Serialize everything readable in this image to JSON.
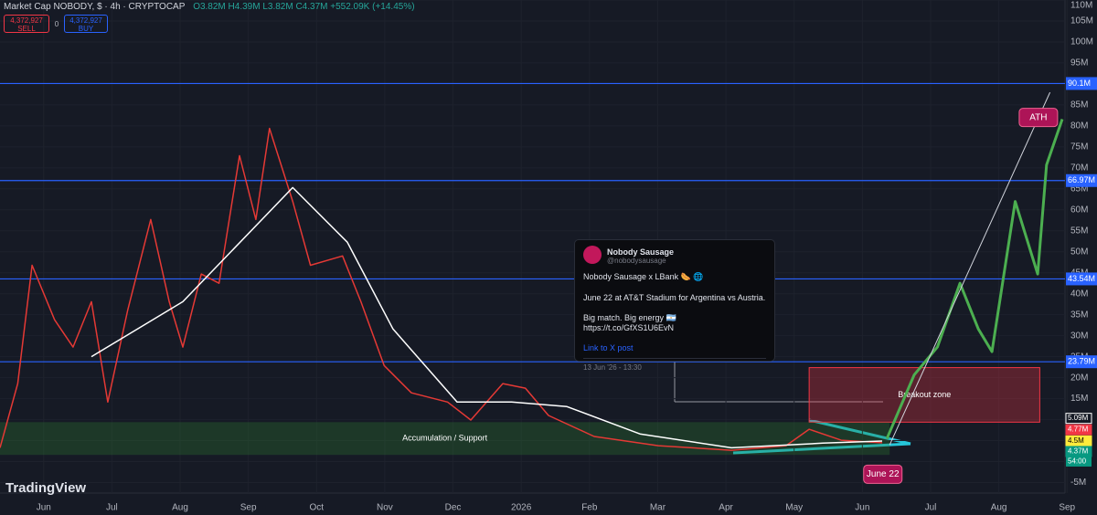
{
  "header": {
    "symbol": "Market Cap NOBODY, $ · 4h · CRYPTOCAP",
    "ohlc": "O3.82M H4.39M L3.82M C4.37M +552.09K (+14.45%)",
    "sell_price": "4,372,927",
    "sell_label": "SELL",
    "spread": "0",
    "buy_price": "4,372,927",
    "buy_label": "BUY",
    "brand": "TradingView"
  },
  "tweet": {
    "author": "Nobody Sausage",
    "handle": "@nobodysausage",
    "lines": [
      "Nobody Sausage x LBank 🌭 🌐",
      "June 22 at AT&T Stadium for Argentina vs Austria.",
      "Big match. Big energy 🇦🇷 https://t.co/GfXS1U6EvN"
    ],
    "link": "Link to X post",
    "date": "13 Jun '26 - 13:30"
  },
  "chart_data": {
    "type": "line",
    "series": [
      {
        "name": "Market Cap",
        "color": "#e53935",
        "x": [
          -0.64,
          -0.38,
          -0.17,
          0.16,
          0.43,
          0.7,
          0.94,
          1.23,
          1.57,
          1.84,
          2.04,
          2.31,
          2.57,
          2.87,
          3.11,
          3.31,
          3.65,
          3.91,
          4.38,
          4.65,
          4.99,
          5.39,
          5.92,
          6.26,
          6.73,
          7.06,
          7.4,
          8.07,
          9.01,
          10.08,
          10.88,
          11.22,
          11.69,
          12.29
        ],
        "values": [
          3.3,
          18.6,
          46.8,
          33.8,
          27.3,
          38.1,
          14.2,
          36,
          57.7,
          38.1,
          27.3,
          44.7,
          42.5,
          72.9,
          57.7,
          79.4,
          62,
          46.8,
          49,
          38.1,
          22.9,
          16.4,
          14.2,
          9.9,
          18.6,
          17.5,
          11,
          6,
          3.8,
          2.7,
          3.8,
          7.7,
          5.1,
          4.5
        ]
      },
      {
        "name": "Moving Average",
        "color": "#ffffff",
        "x": [
          0.7,
          2.04,
          3.65,
          4.45,
          5.12,
          6.06,
          6.86,
          7.67,
          8.74,
          10.08,
          11.42,
          12.29
        ],
        "values": [
          25,
          38.1,
          65.3,
          52.3,
          31.6,
          14.2,
          14.2,
          13.1,
          6.6,
          3.3,
          4.4,
          4.9
        ]
      },
      {
        "name": "Projection",
        "color": "#4caf50",
        "x": [
          12.36,
          12.76,
          13.1,
          13.43,
          13.7,
          13.9,
          14.24,
          14.57,
          14.7,
          14.93
        ],
        "values": [
          5.5,
          20.7,
          27.3,
          42.5,
          31.6,
          26.2,
          62,
          44.7,
          70.7,
          81.6
        ]
      }
    ],
    "xlim": [
      -0.64,
      14.97
    ],
    "ylim": [
      -7.5,
      110
    ],
    "xticks": [
      {
        "value": 0,
        "label": "Jun"
      },
      {
        "value": 1,
        "label": "Jul"
      },
      {
        "value": 2,
        "label": "Aug"
      },
      {
        "value": 3,
        "label": "Sep"
      },
      {
        "value": 4,
        "label": "Oct"
      },
      {
        "value": 5,
        "label": "Nov"
      },
      {
        "value": 6,
        "label": "Dec"
      },
      {
        "value": 7,
        "label": "2026"
      },
      {
        "value": 8,
        "label": "Feb"
      },
      {
        "value": 9,
        "label": "Mar"
      },
      {
        "value": 10,
        "label": "Apr"
      },
      {
        "value": 11,
        "label": "May"
      },
      {
        "value": 12,
        "label": "Jun"
      },
      {
        "value": 13,
        "label": "Jul"
      },
      {
        "value": 14,
        "label": "Aug"
      },
      {
        "value": 15,
        "label": "Sep"
      }
    ],
    "yticks": [
      {
        "value": 110,
        "label": "110M"
      },
      {
        "value": 105,
        "label": "105M"
      },
      {
        "value": 100,
        "label": "100M"
      },
      {
        "value": 95,
        "label": "95M"
      },
      {
        "value": 90,
        "label": "90M"
      },
      {
        "value": 85,
        "label": "85M"
      },
      {
        "value": 80,
        "label": "80M"
      },
      {
        "value": 75,
        "label": "75M"
      },
      {
        "value": 70,
        "label": "70M"
      },
      {
        "value": 65,
        "label": "65M"
      },
      {
        "value": 60,
        "label": "60M"
      },
      {
        "value": 55,
        "label": "55M"
      },
      {
        "value": 50,
        "label": "50M"
      },
      {
        "value": 45,
        "label": "45M"
      },
      {
        "value": 40,
        "label": "40M"
      },
      {
        "value": 35,
        "label": "35M"
      },
      {
        "value": 30,
        "label": "30M"
      },
      {
        "value": 25,
        "label": "25M"
      },
      {
        "value": 20,
        "label": "20M"
      },
      {
        "value": 15,
        "label": "15M"
      },
      {
        "value": 10,
        "label": "10M"
      },
      {
        "value": 5,
        "label": "5M"
      },
      0,
      {
        "value": -5,
        "label": "-5M"
      }
    ],
    "grid": true,
    "levels": [
      {
        "value": 90.1,
        "label": "90.1M"
      },
      {
        "value": 66.97,
        "label": "66.97M"
      },
      {
        "value": 43.54,
        "label": "43.54M"
      },
      {
        "value": 23.79,
        "label": "23.79M"
      }
    ],
    "level_color": "#2962ff",
    "price_labels": [
      {
        "value": 5.09,
        "label": "5.09M",
        "color": "#ffffff"
      },
      {
        "value": 4.77,
        "label": "4.77M",
        "color": "#f23645"
      },
      {
        "value": 4.5,
        "label": "4.5M",
        "color": "#ffeb3b"
      },
      {
        "value": 4.37,
        "label": "4.37M",
        "color": "#089981"
      }
    ],
    "countdown": "54:00",
    "zones": [
      {
        "name": "Breakout zone",
        "x": [
          11.22,
          14.6
        ],
        "y": [
          9.4,
          22.4
        ],
        "color": "#f23645"
      },
      {
        "name": "Accumulation / Support",
        "x": [
          -0.64,
          12.4
        ],
        "y": [
          1.6,
          9.4
        ],
        "color": "#2e7d32"
      }
    ],
    "annotations": [
      {
        "text": "ATH",
        "x": 14.58,
        "y": 82
      },
      {
        "text": "June 22",
        "x": 12.3,
        "y": -3
      }
    ],
    "arrow": {
      "x": [
        12.4,
        14.75
      ],
      "y": [
        4,
        88
      ]
    }
  }
}
